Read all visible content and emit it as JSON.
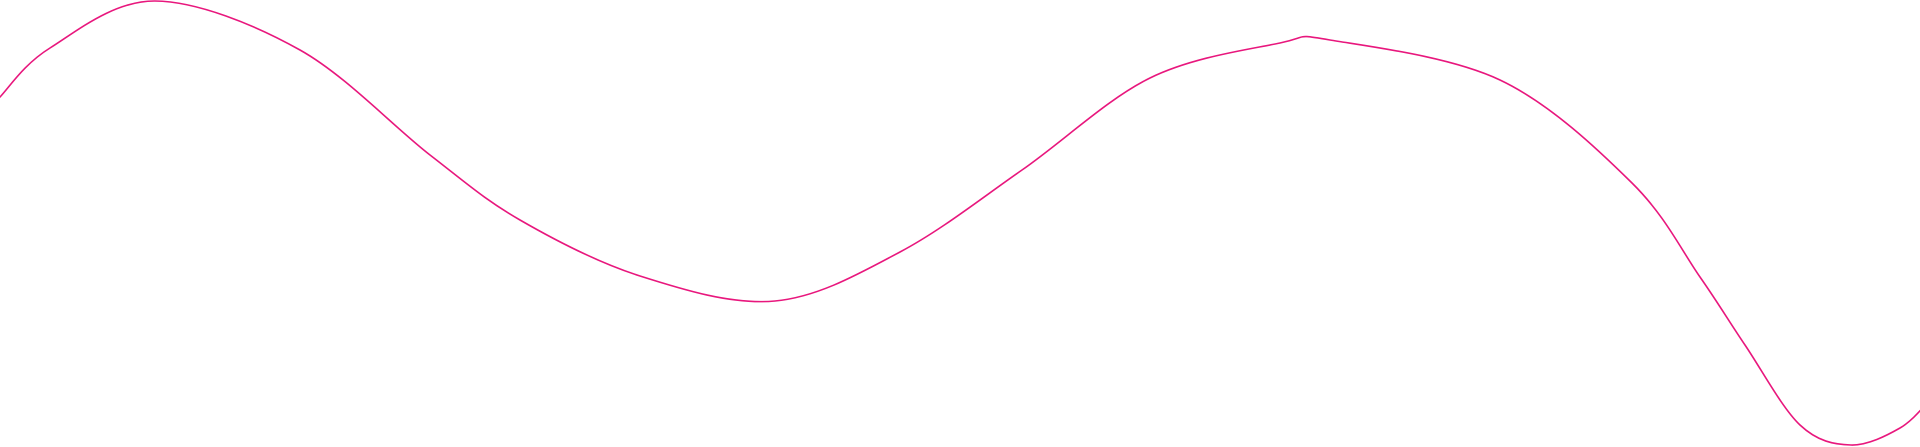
{
  "decoration": {
    "type": "wavy-line",
    "stroke_color": "#e8177d",
    "background_color": "#ffffff"
  }
}
